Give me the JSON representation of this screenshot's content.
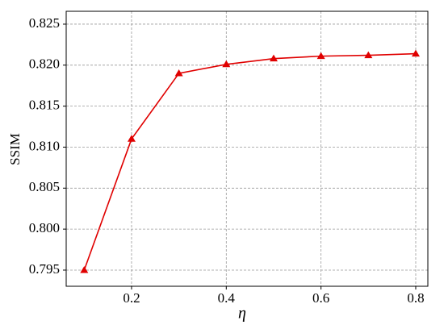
{
  "chart_data": {
    "type": "line",
    "x_label": "η",
    "y_label": "SSIM",
    "x": [
      0.1,
      0.2,
      0.3,
      0.4,
      0.5,
      0.6,
      0.7,
      0.8
    ],
    "series": [
      {
        "color": "#e00000",
        "values": [
          0.795,
          0.811,
          0.819,
          0.8201,
          0.8208,
          0.8211,
          0.8212,
          0.8214
        ]
      }
    ],
    "xlim": [
      0.062,
      0.8256
    ],
    "ylim": [
      0.79303,
      0.82657
    ],
    "xticks": [
      0.2,
      0.4,
      0.6,
      0.8
    ],
    "yticks": [
      0.795,
      {
        "value": 0.8,
        "label": "0.800"
      },
      0.805,
      {
        "value": 0.81,
        "label": "0.810"
      },
      0.815,
      {
        "value": 0.82,
        "label": "0.820"
      },
      0.825
    ],
    "grid": true,
    "marker": "triangle"
  }
}
